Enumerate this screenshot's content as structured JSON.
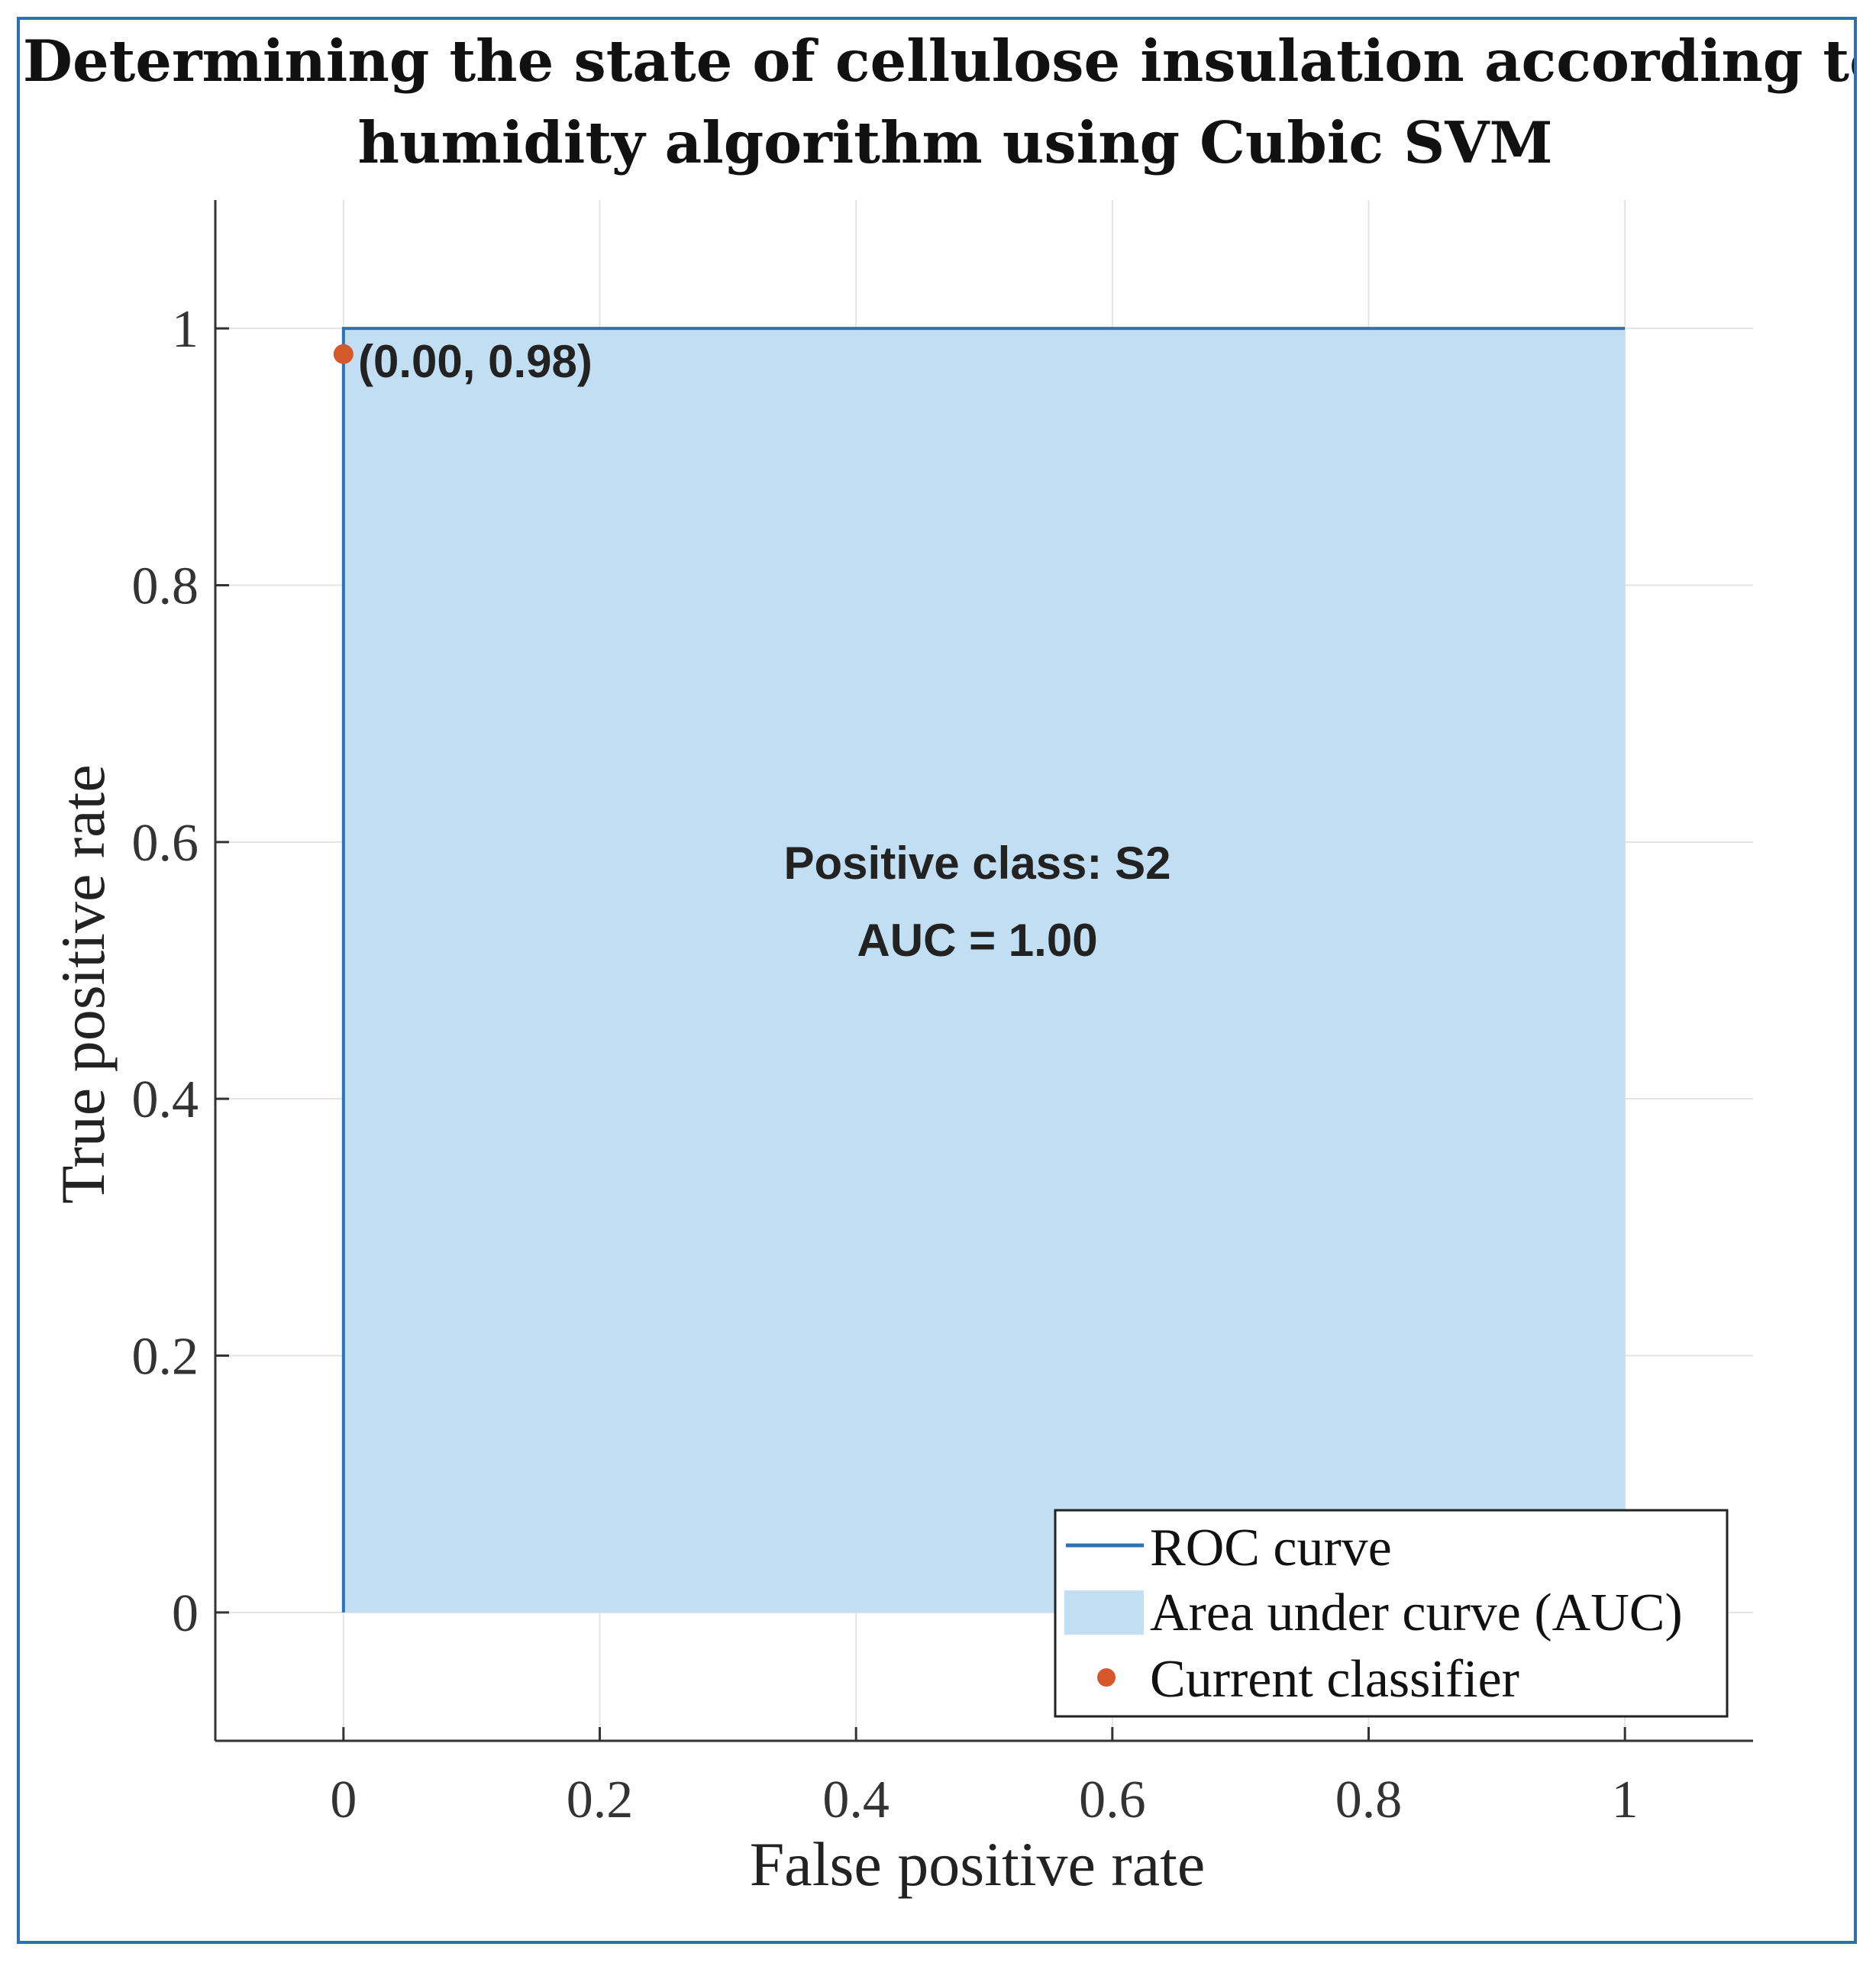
{
  "chart_data": {
    "type": "line",
    "title_lines": [
      "Determining the state of cellulose insulation according to",
      "humidity algorithm using Cubic SVM"
    ],
    "xlabel": "False positive rate",
    "ylabel": "True positive rate",
    "xlim": [
      -0.1,
      1.1
    ],
    "ylim": [
      -0.1,
      1.1
    ],
    "xticks": [
      0,
      0.2,
      0.4,
      0.6,
      0.8,
      1
    ],
    "xtick_labels": [
      "0",
      "0.2",
      "0.4",
      "0.6",
      "0.8",
      "1"
    ],
    "yticks": [
      0,
      0.2,
      0.4,
      0.6,
      0.8,
      1
    ],
    "ytick_labels": [
      "0",
      "0.2",
      "0.4",
      "0.6",
      "0.8",
      "1"
    ],
    "grid": true,
    "series": [
      {
        "name": "ROC curve",
        "x": [
          0,
          0,
          1
        ],
        "y": [
          0,
          1,
          1
        ],
        "color": "#2a73b8"
      },
      {
        "name": "Area under curve (AUC)",
        "x": [
          0,
          0,
          1,
          1
        ],
        "y": [
          0,
          1,
          1,
          0
        ],
        "color": "#c2def3"
      },
      {
        "name": "Current classifier",
        "x": [
          0.0
        ],
        "y": [
          0.98
        ],
        "color": "#d4582a"
      }
    ],
    "point_label": "(0.00, 0.98)",
    "annotations": [
      "Positive class: S2",
      "AUC = 1.00"
    ],
    "legend": {
      "position": "bottom-right",
      "entries": [
        "ROC curve",
        "Area under curve (AUC)",
        "Current classifier"
      ]
    }
  }
}
